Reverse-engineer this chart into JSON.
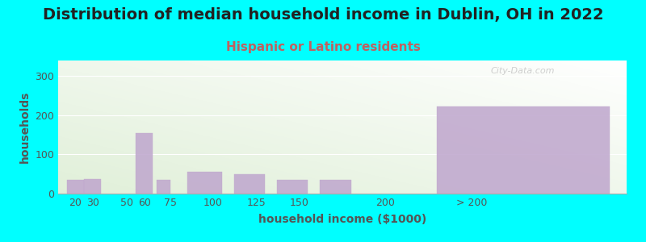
{
  "title": "Distribution of median household income in Dublin, OH in 2022",
  "subtitle": "Hispanic or Latino residents",
  "xlabel": "household income ($1000)",
  "ylabel": "households",
  "background_outer": "#00FFFF",
  "bar_color": "#C0A8CE",
  "categories": [
    "20",
    "30",
    "50",
    "60",
    "75",
    "100",
    "125",
    "150",
    "200",
    "> 200"
  ],
  "values": [
    35,
    37,
    0,
    155,
    35,
    55,
    50,
    35,
    35,
    222
  ],
  "bar_lefts": [
    15,
    25,
    40,
    55,
    67,
    85,
    112,
    137,
    162,
    230
  ],
  "bar_widths": [
    10,
    10,
    0,
    10,
    8,
    20,
    18,
    18,
    18,
    100
  ],
  "ylim": [
    0,
    340
  ],
  "yticks": [
    0,
    100,
    200,
    300
  ],
  "xlim": [
    10,
    340
  ],
  "xtick_positions": [
    20,
    30,
    50,
    60,
    75,
    100,
    125,
    150,
    200,
    250
  ],
  "xtick_labels": [
    "20",
    "30",
    "50",
    "60",
    "75",
    "100",
    "125",
    "150",
    "200",
    "> 200"
  ],
  "title_fontsize": 14,
  "subtitle_fontsize": 11,
  "axis_label_fontsize": 10,
  "tick_fontsize": 9,
  "watermark": "City-Data.com",
  "subtitle_color": "#c06060",
  "title_color": "#222222",
  "label_color": "#555555"
}
